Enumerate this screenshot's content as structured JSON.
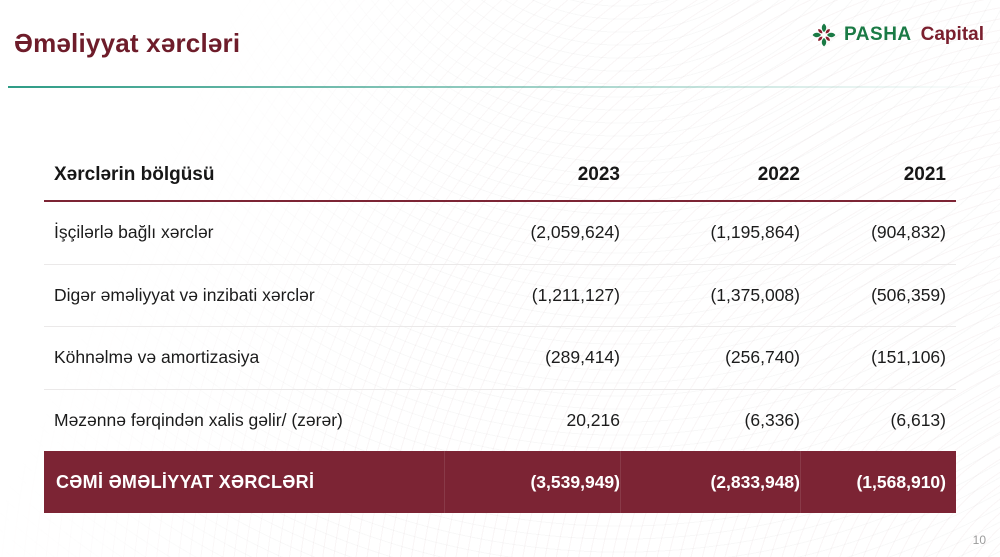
{
  "slide": {
    "title": "Əməliyyat xərcləri",
    "page_number": "10"
  },
  "logo": {
    "brand": "PASHA",
    "suffix": "Capital"
  },
  "colors": {
    "title_maroon": "#6e1c2a",
    "accent_teal": "#2e9c86",
    "table_rule_maroon": "#7c2434",
    "total_row_bg": "#7c2434",
    "total_row_text": "#ffffff",
    "logo_green": "#1a7a45",
    "logo_maroon": "#7a1f2e"
  },
  "table": {
    "columns": [
      "Xərclərin bölgüsü",
      "2023",
      "2022",
      "2021"
    ],
    "rows": [
      {
        "label": "İşçilərlə bağlı xərclər",
        "values": [
          "(2,059,624)",
          "(1,195,864)",
          "(904,832)"
        ]
      },
      {
        "label": "Digər əməliyyat və inzibati xərclər",
        "values": [
          "(1,211,127)",
          "(1,375,008)",
          "(506,359)"
        ]
      },
      {
        "label": "Köhnəlmə və amortizasiya",
        "values": [
          "(289,414)",
          "(256,740)",
          "(151,106)"
        ]
      },
      {
        "label": "Məzənnə fərqindən xalis gəlir/ (zərər)",
        "values": [
          "20,216",
          "(6,336)",
          "(6,613)"
        ]
      }
    ],
    "total": {
      "label": "CƏMİ ƏMƏLİYYAT XƏRCLƏRİ",
      "values": [
        "(3,539,949)",
        "(2,833,948)",
        "(1,568,910)"
      ]
    }
  }
}
